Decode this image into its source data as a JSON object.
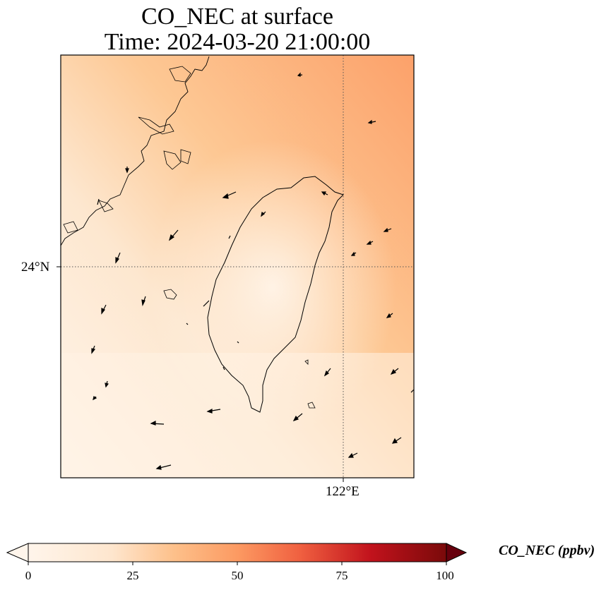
{
  "title": {
    "line1": "CO_NEC at surface",
    "line2": "Time: 2024-03-20 21:00:00"
  },
  "axes": {
    "lat_tick": "24°N",
    "lon_tick": "122°E",
    "gridlines": "dotted"
  },
  "colorbar": {
    "label": "CO_NEC (ppbv)",
    "ticks": [
      "0",
      "25",
      "50",
      "75",
      "100"
    ],
    "range": [
      0,
      100
    ],
    "colormap": "oranges-to-dark-red",
    "colors": [
      "#fff5eb",
      "#fdd0a2",
      "#fdae6b",
      "#f16913",
      "#d94801",
      "#a50f15",
      "#67000d"
    ],
    "extend": "both"
  },
  "map": {
    "region": "Taiwan Strait",
    "features": [
      "coastline",
      "wind-vectors"
    ],
    "field_colors": [
      "#fbe3c6",
      "#fdcc9b",
      "#fca774",
      "#fff3e4"
    ]
  }
}
